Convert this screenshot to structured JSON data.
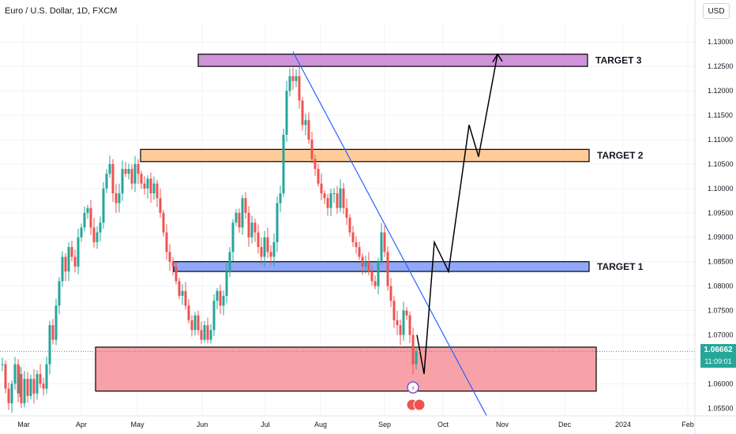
{
  "header": {
    "title": "Euro / U.S. Dollar, 1D, FXCM",
    "currency_button": "USD"
  },
  "price_tag": {
    "value": "1.06662",
    "countdown": "11:09:01",
    "color": "#26a69a"
  },
  "colors": {
    "up": "#26a69a",
    "down": "#ef5350",
    "trendline": "#2962ff"
  },
  "chart_data": {
    "type": "candlestick",
    "symbol": "EURUSD",
    "timeframe": "1D",
    "ylim": [
      1.05375,
      1.13375
    ],
    "y_ticks": [
      "1.13000",
      "1.12500",
      "1.12000",
      "1.11500",
      "1.11000",
      "1.10500",
      "1.10000",
      "1.09500",
      "1.09000",
      "1.08500",
      "1.08000",
      "1.07500",
      "1.07000",
      "1.06500",
      "1.06000",
      "1.05500"
    ],
    "x_ticks": [
      "Mar",
      "Apr",
      "May",
      "Jun",
      "Jul",
      "Aug",
      "Sep",
      "Oct",
      "Nov",
      "Dec",
      "2024",
      "Feb"
    ],
    "last_price": 1.06662,
    "candles_close_path": [
      [
        0,
        1.064
      ],
      [
        4,
        1.059
      ],
      [
        8,
        1.056
      ],
      [
        12,
        1.06
      ],
      [
        16,
        1.064
      ],
      [
        20,
        1.058
      ],
      [
        22,
        1.062
      ],
      [
        24,
        1.056
      ],
      [
        28,
        1.061
      ],
      [
        32,
        1.0575
      ],
      [
        36,
        1.061
      ],
      [
        40,
        1.058
      ],
      [
        44,
        1.062
      ],
      [
        48,
        1.06
      ],
      [
        52,
        1.059
      ],
      [
        56,
        1.064
      ],
      [
        60,
        1.072
      ],
      [
        64,
        1.069
      ],
      [
        68,
        1.076
      ],
      [
        72,
        1.081
      ],
      [
        76,
        1.086
      ],
      [
        80,
        1.083
      ],
      [
        84,
        1.088
      ],
      [
        88,
        1.086
      ],
      [
        92,
        1.084
      ],
      [
        96,
        1.09
      ],
      [
        100,
        1.092
      ],
      [
        104,
        1.095
      ],
      [
        108,
        1.096
      ],
      [
        112,
        1.092
      ],
      [
        116,
        1.089
      ],
      [
        120,
        1.091
      ],
      [
        124,
        1.093
      ],
      [
        128,
        1.1
      ],
      [
        132,
        1.103
      ],
      [
        136,
        1.105
      ],
      [
        140,
        1.099
      ],
      [
        144,
        1.097
      ],
      [
        148,
        1.099
      ],
      [
        152,
        1.104
      ],
      [
        156,
        1.103
      ],
      [
        160,
        1.104
      ],
      [
        164,
        1.101
      ],
      [
        168,
        1.105
      ],
      [
        172,
        1.103
      ],
      [
        176,
        1.101
      ],
      [
        180,
        1.1
      ],
      [
        184,
        1.102
      ],
      [
        188,
        1.099
      ],
      [
        192,
        1.101
      ],
      [
        196,
        1.098
      ],
      [
        200,
        1.095
      ],
      [
        204,
        1.091
      ],
      [
        208,
        1.087
      ],
      [
        212,
        1.085
      ],
      [
        216,
        1.084
      ],
      [
        220,
        1.081
      ],
      [
        224,
        1.078
      ],
      [
        228,
        1.079
      ],
      [
        232,
        1.076
      ],
      [
        236,
        1.073
      ],
      [
        240,
        1.071
      ],
      [
        244,
        1.074
      ],
      [
        248,
        1.071
      ],
      [
        252,
        1.069
      ],
      [
        256,
        1.072
      ],
      [
        260,
        1.069
      ],
      [
        264,
        1.071
      ],
      [
        268,
        1.077
      ],
      [
        272,
        1.079
      ],
      [
        276,
        1.076
      ],
      [
        280,
        1.078
      ],
      [
        284,
        1.083
      ],
      [
        288,
        1.087
      ],
      [
        292,
        1.093
      ],
      [
        296,
        1.095
      ],
      [
        300,
        1.092
      ],
      [
        304,
        1.098
      ],
      [
        308,
        1.095
      ],
      [
        312,
        1.09
      ],
      [
        316,
        1.093
      ],
      [
        320,
        1.091
      ],
      [
        324,
        1.088
      ],
      [
        328,
        1.086
      ],
      [
        332,
        1.09
      ],
      [
        336,
        1.087
      ],
      [
        340,
        1.086
      ],
      [
        344,
        1.089
      ],
      [
        348,
        1.097
      ],
      [
        352,
        1.099
      ],
      [
        356,
        1.111
      ],
      [
        360,
        1.12
      ],
      [
        364,
        1.123
      ],
      [
        368,
        1.122
      ],
      [
        372,
        1.123
      ],
      [
        376,
        1.118
      ],
      [
        380,
        1.113
      ],
      [
        384,
        1.114
      ],
      [
        388,
        1.11
      ],
      [
        392,
        1.106
      ],
      [
        396,
        1.104
      ],
      [
        400,
        1.101
      ],
      [
        404,
        1.099
      ],
      [
        408,
        1.098
      ],
      [
        412,
        1.096
      ],
      [
        416,
        1.099
      ],
      [
        420,
        1.099
      ],
      [
        424,
        1.096
      ],
      [
        428,
        1.1
      ],
      [
        432,
        1.096
      ],
      [
        436,
        1.094
      ],
      [
        440,
        1.091
      ],
      [
        444,
        1.089
      ],
      [
        448,
        1.088
      ],
      [
        452,
        1.086
      ],
      [
        456,
        1.084
      ],
      [
        460,
        1.085
      ],
      [
        464,
        1.083
      ],
      [
        468,
        1.081
      ],
      [
        472,
        1.08
      ],
      [
        476,
        1.085
      ],
      [
        480,
        1.091
      ],
      [
        484,
        1.087
      ],
      [
        488,
        1.08
      ],
      [
        492,
        1.077
      ],
      [
        496,
        1.073
      ],
      [
        500,
        1.072
      ],
      [
        504,
        1.07
      ],
      [
        508,
        1.075
      ],
      [
        512,
        1.074
      ],
      [
        516,
        1.07
      ],
      [
        520,
        1.064
      ],
      [
        524,
        1.0666
      ]
    ],
    "zones": [
      {
        "label": "TARGET 3",
        "low": 1.125,
        "high": 1.1275,
        "color": "#ce93d8"
      },
      {
        "label": "TARGET 2",
        "low": 1.1055,
        "high": 1.108,
        "color": "#ffcc99"
      },
      {
        "label": "TARGET 1",
        "low": 1.083,
        "high": 1.085,
        "color": "#90a8f8"
      },
      {
        "label": "",
        "low": 1.0585,
        "high": 1.0675,
        "color": "#f7a2a8"
      }
    ],
    "projection_path": [
      {
        "x_label": "mid-Sep",
        "y": 1.07
      },
      {
        "x_label": "late-Sep",
        "y": 1.062
      },
      {
        "x_label": "Oct",
        "y": 1.089
      },
      {
        "x_label": "Oct",
        "y": 1.083
      },
      {
        "x_label": "Oct-Nov",
        "y": 1.113
      },
      {
        "x_label": "Nov",
        "y": 1.1065
      },
      {
        "x_label": "Nov",
        "y": 1.1275
      }
    ],
    "trendline": [
      {
        "date": "mid-Jul",
        "y": 1.128
      },
      {
        "date": "late-Oct",
        "y": 1.0535
      }
    ]
  }
}
